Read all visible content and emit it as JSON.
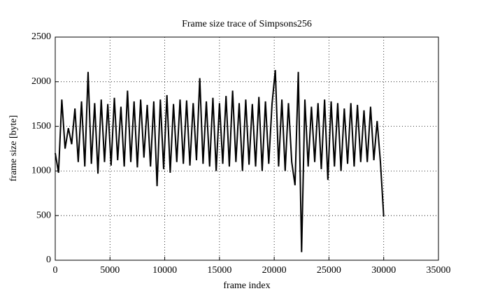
{
  "chart_data": {
    "type": "line",
    "title": "Frame size trace of Simpsons256",
    "x_label": "frame index",
    "y_label": "frame size [byte]",
    "xlim": [
      0,
      35000
    ],
    "ylim": [
      0,
      2500
    ],
    "xticks": [
      0,
      5000,
      10000,
      15000,
      20000,
      25000,
      30000,
      35000
    ],
    "yticks": [
      0,
      500,
      1000,
      1500,
      2000,
      2500
    ],
    "grid": true,
    "series": [
      {
        "color": "#000000",
        "x": [
          0,
          300,
          600,
          900,
          1200,
          1500,
          1800,
          2100,
          2400,
          2700,
          3000,
          3300,
          3600,
          3900,
          4200,
          4500,
          4800,
          5100,
          5400,
          5700,
          6000,
          6300,
          6600,
          6900,
          7200,
          7500,
          7800,
          8100,
          8400,
          8700,
          9000,
          9300,
          9600,
          9900,
          10200,
          10500,
          10800,
          11100,
          11400,
          11700,
          12000,
          12300,
          12600,
          12900,
          13200,
          13500,
          13800,
          14100,
          14400,
          14700,
          15000,
          15300,
          15600,
          15900,
          16200,
          16500,
          16800,
          17100,
          17400,
          17700,
          18000,
          18300,
          18600,
          18900,
          19200,
          19500,
          19800,
          20100,
          20400,
          20700,
          21000,
          21300,
          21600,
          21900,
          22200,
          22500,
          22800,
          23100,
          23400,
          23700,
          24000,
          24300,
          24600,
          24900,
          25200,
          25500,
          25800,
          26100,
          26400,
          26700,
          27000,
          27300,
          27600,
          27900,
          28200,
          28500,
          28800,
          29100,
          29400,
          29700,
          30000
        ],
        "values": [
          1200,
          980,
          1800,
          1250,
          1480,
          1300,
          1700,
          1100,
          1780,
          1050,
          2110,
          1080,
          1760,
          970,
          1800,
          1100,
          1750,
          1060,
          1820,
          1120,
          1720,
          1050,
          1900,
          1100,
          1780,
          1040,
          1800,
          1150,
          1740,
          1050,
          1780,
          830,
          1800,
          1020,
          1850,
          980,
          1750,
          1100,
          1800,
          1080,
          1790,
          1060,
          1760,
          1120,
          2040,
          1080,
          1780,
          1050,
          1820,
          1000,
          1760,
          1080,
          1840,
          1050,
          1900,
          1100,
          1760,
          1000,
          1800,
          1070,
          1750,
          1050,
          1830,
          1000,
          1780,
          1080,
          1750,
          2130,
          1050,
          1800,
          1000,
          1760,
          1100,
          840,
          2110,
          90,
          1800,
          1050,
          1720,
          1100,
          1760,
          1020,
          1800,
          900,
          1780,
          1050,
          1760,
          1000,
          1700,
          1080,
          1760,
          1050,
          1740,
          1100,
          1680,
          1100,
          1720,
          1120,
          1560,
          1100,
          490
        ]
      }
    ]
  }
}
